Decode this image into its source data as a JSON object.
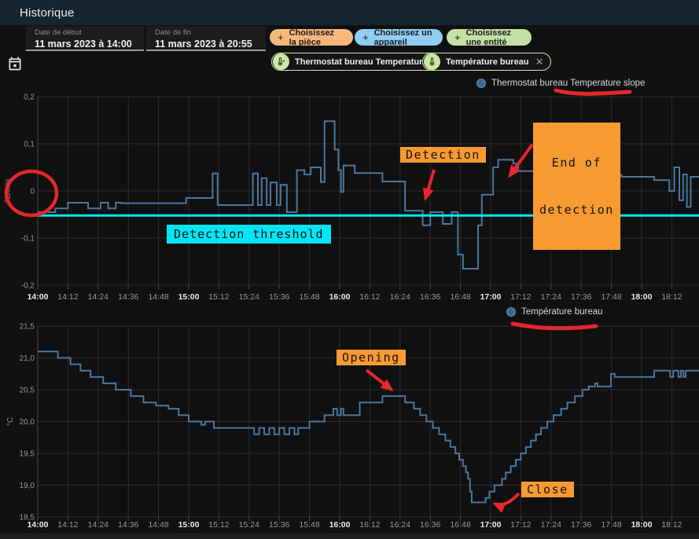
{
  "app": {
    "title": "Historique"
  },
  "toolbar": {
    "date_start": {
      "label": "Date de début",
      "value": "11 mars 2023 à 14:00"
    },
    "date_end": {
      "label": "Date de fin",
      "value": "11 mars 2023 à 20:55"
    },
    "filters": [
      {
        "label": "Choisissez la pièce",
        "plus": "+",
        "color": "#f8b87c"
      },
      {
        "label": "Choisissez un appareil",
        "plus": "+",
        "color": "#90cdf2"
      },
      {
        "label": "Choisissez une entité",
        "plus": "+",
        "color": "#c5e0a5"
      }
    ],
    "chips": [
      {
        "label": "Thermostat bureau Temperature slope",
        "icon": "thermometer-slope-icon",
        "close": "✕"
      },
      {
        "label": "Température bureau",
        "icon": "thermometer-icon",
        "close": "✕"
      }
    ]
  },
  "chart_data": [
    {
      "type": "line",
      "line_style": "step-after",
      "legend": "Thermostat bureau Temperature slope",
      "ylabel": "°C/min",
      "ylim": [
        -0.2,
        0.2
      ],
      "y_ticks": [
        {
          "value": 0.2,
          "label": "0,2"
        },
        {
          "value": 0.1,
          "label": "0,1"
        },
        {
          "value": 0,
          "label": "0"
        },
        {
          "value": -0.1,
          "label": "-0,1"
        },
        {
          "value": -0.2,
          "label": "-0,2"
        }
      ],
      "x_ticks": [
        "14:00",
        "14:12",
        "14:24",
        "14:36",
        "14:48",
        "15:00",
        "15:12",
        "15:24",
        "15:36",
        "15:48",
        "16:00",
        "16:12",
        "16:24",
        "16:36",
        "16:48",
        "17:00",
        "17:12",
        "17:24",
        "17:36",
        "17:48",
        "18:00",
        "18:12"
      ],
      "x_unit": "minutes_from_14:00",
      "threshold": {
        "value": -0.052,
        "color": "#00e6f2",
        "label": "Detection threshold"
      },
      "series": [
        {
          "name": "Thermostat bureau Temperature slope",
          "color": "#4a779e",
          "points": [
            [
              0,
              -0.045
            ],
            [
              7,
              -0.037
            ],
            [
              12,
              -0.025
            ],
            [
              20,
              -0.037
            ],
            [
              25,
              -0.025
            ],
            [
              28,
              -0.037
            ],
            [
              31,
              -0.025
            ],
            [
              33,
              -0.026
            ],
            [
              59,
              -0.015
            ],
            [
              69.5,
              0.037
            ],
            [
              71.5,
              -0.03
            ],
            [
              85.5,
              0.037
            ],
            [
              87.5,
              -0.03
            ],
            [
              89,
              0.027
            ],
            [
              91,
              -0.03
            ],
            [
              92.5,
              0.018
            ],
            [
              95,
              -0.03
            ],
            [
              96.5,
              0.013
            ],
            [
              99,
              -0.045
            ],
            [
              103,
              0.044
            ],
            [
              106,
              0.035
            ],
            [
              108.5,
              0.05
            ],
            [
              112.5,
              0.019
            ],
            [
              114,
              0.148
            ],
            [
              118,
              0.088
            ],
            [
              119.5,
              0.044
            ],
            [
              120.5,
              -0.002
            ],
            [
              121.5,
              0.054
            ],
            [
              126,
              0.038
            ],
            [
              137,
              0.02
            ],
            [
              146,
              -0.042
            ],
            [
              153,
              -0.073
            ],
            [
              156,
              -0.045
            ],
            [
              161,
              -0.07
            ],
            [
              164.5,
              -0.045
            ],
            [
              167,
              -0.135
            ],
            [
              169,
              -0.165
            ],
            [
              175,
              -0.073
            ],
            [
              176.5,
              -0.008
            ],
            [
              181,
              0.05
            ],
            [
              183,
              0.066
            ],
            [
              189,
              0.058
            ],
            [
              191,
              0.042
            ],
            [
              212,
              0.046
            ],
            [
              222,
              0.034
            ],
            [
              226,
              0.03
            ],
            [
              227.5,
              -0.028
            ],
            [
              229.5,
              0.034
            ],
            [
              232,
              0.03
            ],
            [
              245,
              0.023
            ],
            [
              251,
              0.0
            ],
            [
              253,
              0.05
            ],
            [
              255,
              -0.02
            ],
            [
              256.5,
              0.035
            ],
            [
              258,
              -0.034
            ],
            [
              259.5,
              0.03
            ]
          ]
        }
      ]
    },
    {
      "type": "line",
      "line_style": "step-after",
      "legend": "Température bureau",
      "ylabel": "°C",
      "ylim": [
        18.5,
        21.5
      ],
      "y_ticks": [
        {
          "value": 21.5,
          "label": "21,5"
        },
        {
          "value": 21.0,
          "label": "21,0"
        },
        {
          "value": 20.5,
          "label": "20,5"
        },
        {
          "value": 20.0,
          "label": "20,0"
        },
        {
          "value": 19.5,
          "label": "19,5"
        },
        {
          "value": 19.0,
          "label": "19,0"
        },
        {
          "value": 18.5,
          "label": "18,5"
        }
      ],
      "x_ticks": [
        "14:00",
        "14:12",
        "14:24",
        "14:36",
        "14:48",
        "15:00",
        "15:12",
        "15:24",
        "15:36",
        "15:48",
        "16:00",
        "16:12",
        "16:24",
        "16:36",
        "16:48",
        "17:00",
        "17:12",
        "17:24",
        "17:36",
        "17:48",
        "18:00",
        "18:12"
      ],
      "x_unit": "minutes_from_14:00",
      "threshold": null,
      "series": [
        {
          "name": "Température bureau",
          "color": "#4a779e",
          "points": [
            [
              0,
              21.1
            ],
            [
              8,
              21.0
            ],
            [
              13,
              20.9
            ],
            [
              17,
              20.8
            ],
            [
              21,
              20.7
            ],
            [
              26,
              20.6
            ],
            [
              31,
              20.5
            ],
            [
              37,
              20.4
            ],
            [
              42,
              20.3
            ],
            [
              47,
              20.25
            ],
            [
              52,
              20.2
            ],
            [
              56,
              20.1
            ],
            [
              60,
              20.0
            ],
            [
              65,
              19.95
            ],
            [
              66.5,
              20.0
            ],
            [
              70,
              19.9
            ],
            [
              86,
              19.8
            ],
            [
              88,
              19.9
            ],
            [
              90,
              19.8
            ],
            [
              92,
              19.9
            ],
            [
              94,
              19.8
            ],
            [
              96,
              19.9
            ],
            [
              98,
              19.8
            ],
            [
              100,
              19.9
            ],
            [
              102,
              19.8
            ],
            [
              103.5,
              19.9
            ],
            [
              108,
              20.0
            ],
            [
              114,
              20.1
            ],
            [
              117.5,
              20.2
            ],
            [
              119,
              20.1
            ],
            [
              120.5,
              20.2
            ],
            [
              121.5,
              20.1
            ],
            [
              128,
              20.3
            ],
            [
              137,
              20.4
            ],
            [
              146,
              20.3
            ],
            [
              149.5,
              20.2
            ],
            [
              152,
              20.1
            ],
            [
              154.5,
              20.0
            ],
            [
              157,
              19.9
            ],
            [
              159.5,
              19.8
            ],
            [
              162,
              19.7
            ],
            [
              164,
              19.6
            ],
            [
              166,
              19.5
            ],
            [
              167.5,
              19.4
            ],
            [
              169,
              19.3
            ],
            [
              170.2,
              19.2
            ],
            [
              171,
              19.1
            ],
            [
              171.8,
              18.9
            ],
            [
              172.5,
              18.73
            ],
            [
              178,
              18.8
            ],
            [
              179.5,
              18.9
            ],
            [
              181.5,
              19.0
            ],
            [
              184.5,
              19.1
            ],
            [
              186,
              19.2
            ],
            [
              188,
              19.3
            ],
            [
              190,
              19.4
            ],
            [
              192,
              19.5
            ],
            [
              194,
              19.6
            ],
            [
              196,
              19.7
            ],
            [
              198,
              19.8
            ],
            [
              200,
              19.9
            ],
            [
              202.5,
              20.0
            ],
            [
              205,
              20.1
            ],
            [
              208,
              20.2
            ],
            [
              210.5,
              20.3
            ],
            [
              213.5,
              20.4
            ],
            [
              216.5,
              20.5
            ],
            [
              219,
              20.55
            ],
            [
              221.5,
              20.6
            ],
            [
              222.5,
              20.55
            ],
            [
              227.8,
              20.75
            ],
            [
              229.3,
              20.7
            ],
            [
              245,
              20.8
            ],
            [
              251.3,
              20.7
            ],
            [
              252.6,
              20.8
            ],
            [
              254.6,
              20.7
            ],
            [
              255.6,
              20.8
            ],
            [
              256.6,
              20.7
            ],
            [
              257.5,
              20.8
            ]
          ]
        }
      ]
    }
  ],
  "annotations": {
    "detection_label": "Detection",
    "end_of_detection_line1": "End of",
    "end_of_detection_line2": "detection",
    "threshold_label": "Detection threshold",
    "opening_label": "Opening",
    "close_label": "Close",
    "box_color": "#f79a31",
    "threshold_color": "#00e6f2",
    "drawing_color": "#e8262b"
  },
  "colors": {
    "appbar": "#17252e",
    "background": "#101010",
    "series_line": "#4a779e",
    "grid": "#2c2c2c"
  }
}
